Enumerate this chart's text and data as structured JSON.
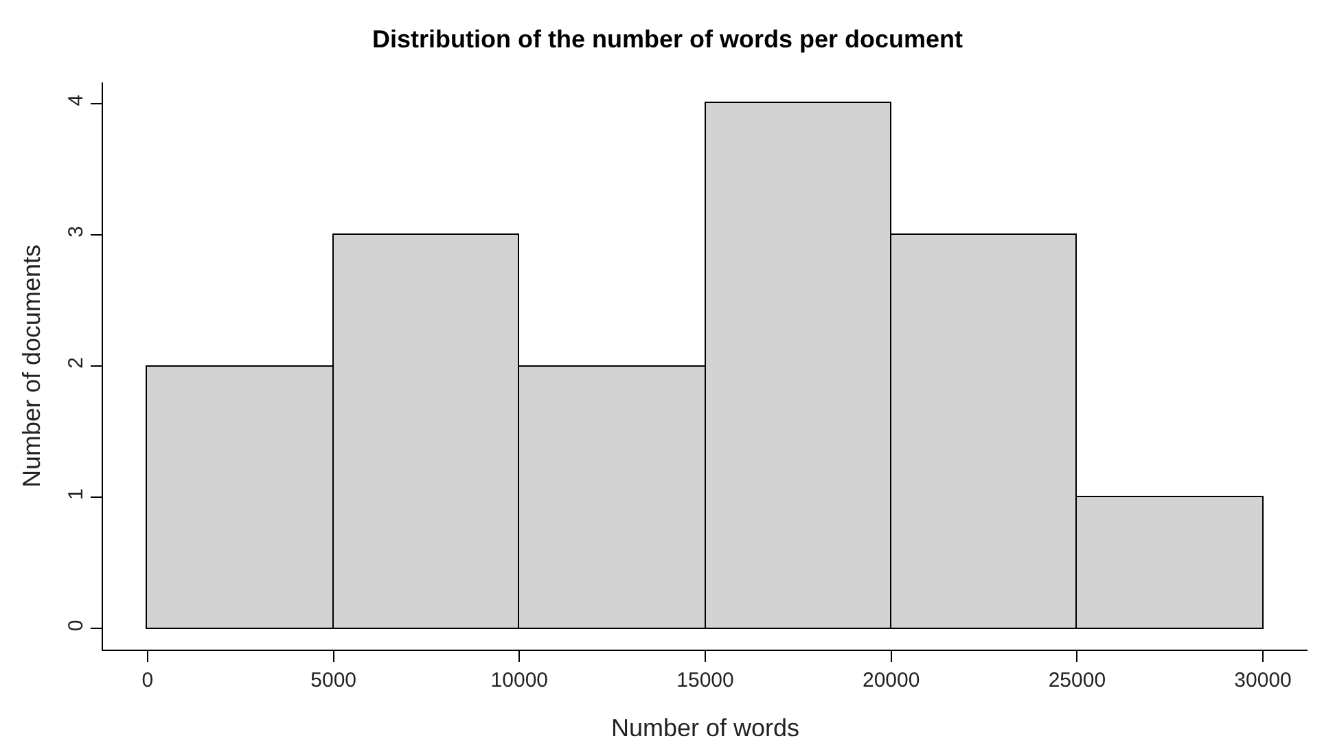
{
  "chart_data": {
    "type": "histogram",
    "title": "Distribution of the number of words per document",
    "xlabel": "Number of words",
    "ylabel": "Number of documents",
    "bins": [
      0,
      5000,
      10000,
      15000,
      20000,
      25000,
      30000
    ],
    "values": [
      2,
      3,
      2,
      4,
      3,
      1
    ],
    "color": "#d3d3d3",
    "xlim": [
      -1200,
      31200
    ],
    "xticks": [
      0,
      5000,
      10000,
      15000,
      20000,
      25000,
      30000
    ],
    "ylim": [
      -0.16,
      4.16
    ],
    "yticks": [
      0,
      1,
      2,
      3,
      4
    ],
    "grid": false
  }
}
